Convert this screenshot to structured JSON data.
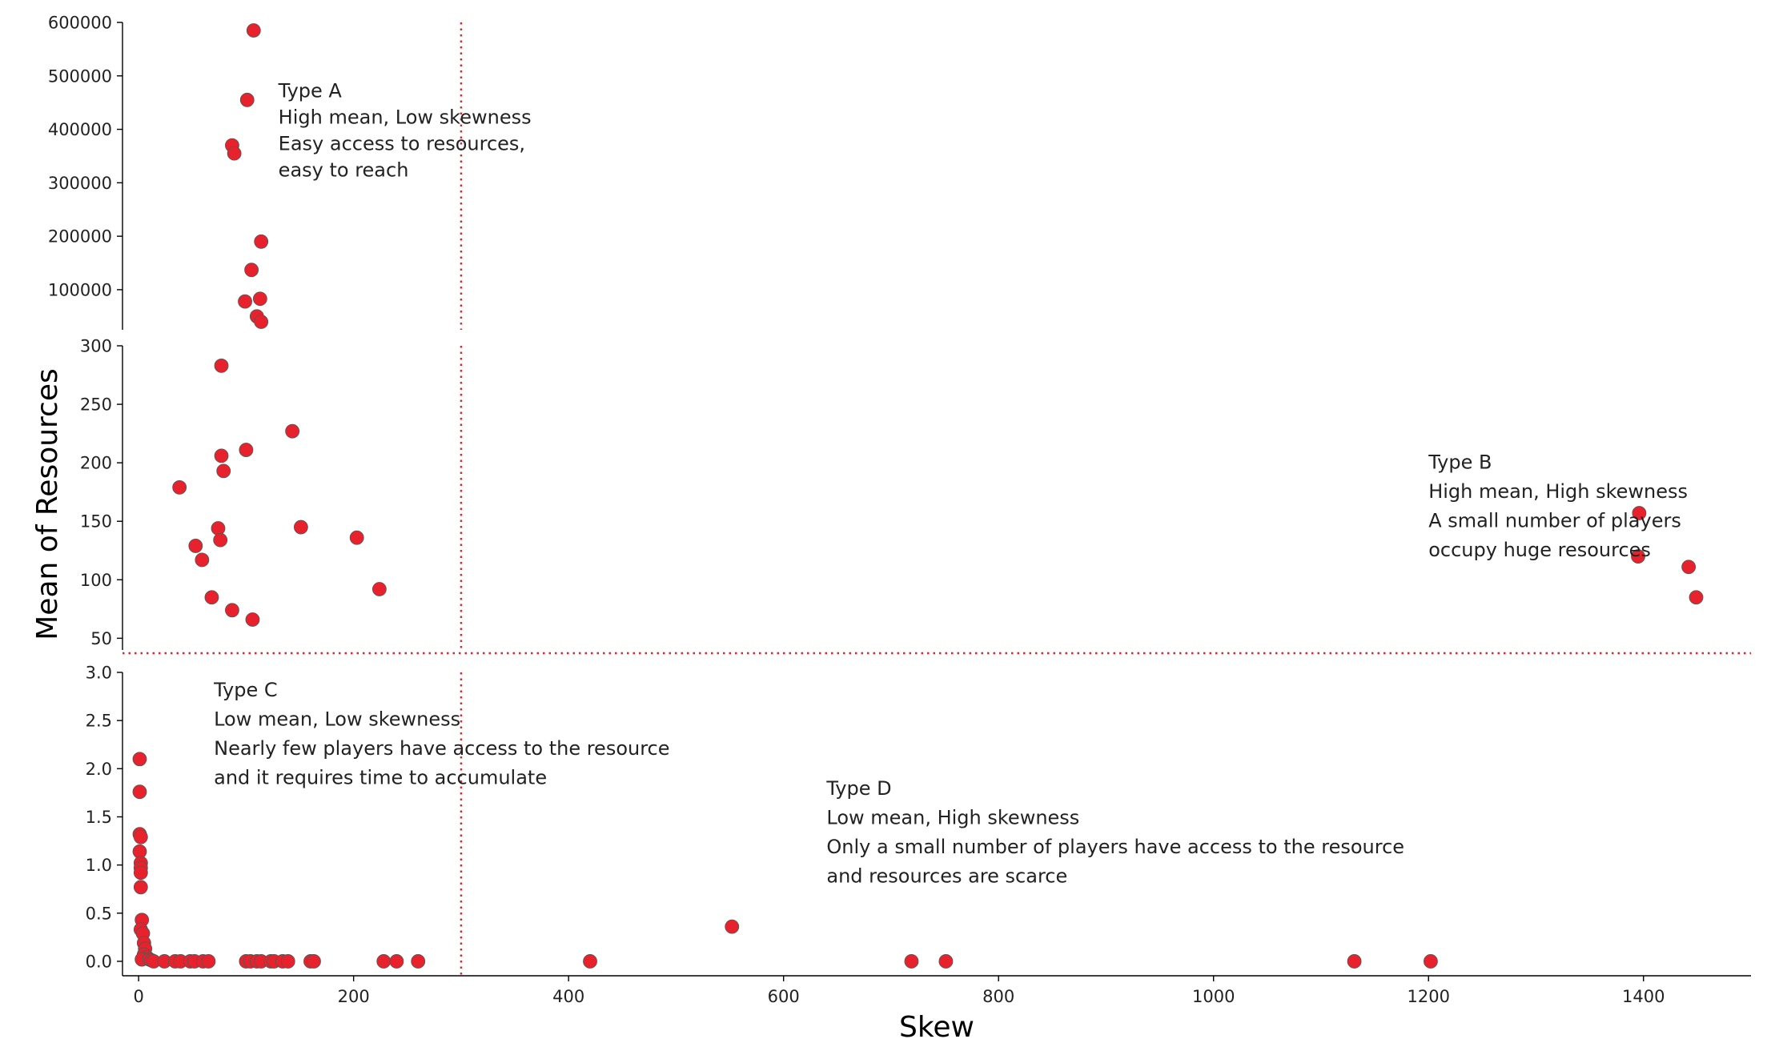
{
  "chart_data": {
    "type": "scatter",
    "xlabel": "Skew",
    "ylabel": "Mean of Resources",
    "x_ticks": [
      0,
      200,
      400,
      600,
      800,
      1000,
      1200,
      1400
    ],
    "xlim": [
      -15,
      1500
    ],
    "point_color": "#e8222c",
    "reference_lines": {
      "vertical_x": 300,
      "horizontal": "between Mean 50 and Mean 3.0 panels"
    },
    "panels": [
      {
        "name": "top",
        "ylim": [
          25000,
          600000
        ],
        "y_ticks": [
          100000,
          200000,
          300000,
          400000,
          500000,
          600000
        ],
        "points": [
          {
            "x": 107,
            "y": 585000
          },
          {
            "x": 101,
            "y": 455000
          },
          {
            "x": 87,
            "y": 370000
          },
          {
            "x": 89,
            "y": 355000
          },
          {
            "x": 114,
            "y": 190000
          },
          {
            "x": 105,
            "y": 137000
          },
          {
            "x": 99,
            "y": 78000
          },
          {
            "x": 113,
            "y": 83000
          },
          {
            "x": 110,
            "y": 50000
          },
          {
            "x": 114,
            "y": 40000
          }
        ]
      },
      {
        "name": "middle",
        "ylim": [
          40,
          300
        ],
        "y_ticks": [
          50,
          100,
          150,
          200,
          250,
          300
        ],
        "points": [
          {
            "x": 77,
            "y": 283
          },
          {
            "x": 143,
            "y": 227
          },
          {
            "x": 100,
            "y": 211
          },
          {
            "x": 77,
            "y": 206
          },
          {
            "x": 79,
            "y": 193
          },
          {
            "x": 38,
            "y": 179
          },
          {
            "x": 151,
            "y": 145
          },
          {
            "x": 74,
            "y": 144
          },
          {
            "x": 76,
            "y": 134
          },
          {
            "x": 203,
            "y": 136
          },
          {
            "x": 53,
            "y": 129
          },
          {
            "x": 59,
            "y": 117
          },
          {
            "x": 224,
            "y": 92
          },
          {
            "x": 68,
            "y": 85
          },
          {
            "x": 87,
            "y": 74
          },
          {
            "x": 106,
            "y": 66
          },
          {
            "x": 1396,
            "y": 157
          },
          {
            "x": 1395,
            "y": 120
          },
          {
            "x": 1442,
            "y": 111
          },
          {
            "x": 1449,
            "y": 85
          }
        ]
      },
      {
        "name": "bottom",
        "ylim": [
          -0.15,
          3.0
        ],
        "y_ticks": [
          0.0,
          0.5,
          1.0,
          1.5,
          2.0,
          2.5,
          3.0
        ],
        "y_tick_labels": [
          "0.0",
          "0.5",
          "1.0",
          "1.5",
          "2.0",
          "2.5",
          "3.0"
        ],
        "points": [
          {
            "x": 1,
            "y": 2.1
          },
          {
            "x": 1,
            "y": 1.76
          },
          {
            "x": 1,
            "y": 1.32
          },
          {
            "x": 2,
            "y": 1.29
          },
          {
            "x": 1,
            "y": 1.14
          },
          {
            "x": 2,
            "y": 1.02
          },
          {
            "x": 2,
            "y": 0.97
          },
          {
            "x": 2,
            "y": 0.92
          },
          {
            "x": 2,
            "y": 0.77
          },
          {
            "x": 3,
            "y": 0.43
          },
          {
            "x": 2,
            "y": 0.33
          },
          {
            "x": 4,
            "y": 0.29
          },
          {
            "x": 5,
            "y": 0.19
          },
          {
            "x": 6,
            "y": 0.13
          },
          {
            "x": 5,
            "y": 0.07
          },
          {
            "x": 8,
            "y": 0.04
          },
          {
            "x": 3,
            "y": 0.02
          },
          {
            "x": 10,
            "y": 0.02
          },
          {
            "x": 12,
            "y": 0.01
          },
          {
            "x": 14,
            "y": 0.0
          },
          {
            "x": 24,
            "y": 0.0
          },
          {
            "x": 34,
            "y": 0.0
          },
          {
            "x": 39,
            "y": 0.0
          },
          {
            "x": 48,
            "y": 0.0
          },
          {
            "x": 52,
            "y": 0.0
          },
          {
            "x": 60,
            "y": 0.0
          },
          {
            "x": 65,
            "y": 0.0
          },
          {
            "x": 100,
            "y": 0.0
          },
          {
            "x": 104,
            "y": 0.0
          },
          {
            "x": 110,
            "y": 0.0
          },
          {
            "x": 114,
            "y": 0.0
          },
          {
            "x": 123,
            "y": 0.0
          },
          {
            "x": 126,
            "y": 0.0
          },
          {
            "x": 134,
            "y": 0.0
          },
          {
            "x": 139,
            "y": 0.0
          },
          {
            "x": 160,
            "y": 0.0
          },
          {
            "x": 163,
            "y": 0.0
          },
          {
            "x": 228,
            "y": 0.0
          },
          {
            "x": 240,
            "y": 0.0
          },
          {
            "x": 260,
            "y": 0.0
          },
          {
            "x": 420,
            "y": 0.0
          },
          {
            "x": 552,
            "y": 0.36
          },
          {
            "x": 719,
            "y": 0.0
          },
          {
            "x": 751,
            "y": 0.0
          },
          {
            "x": 1131,
            "y": 0.0
          },
          {
            "x": 1202,
            "y": 0.0
          }
        ]
      }
    ],
    "annotations": [
      {
        "panel": "top",
        "x": 130,
        "y": 460000,
        "lines": [
          "Type A",
          "High mean, Low skewness",
          "Easy access to resources,",
          "easy to reach"
        ]
      },
      {
        "panel": "middle",
        "x": 1200,
        "y": 195,
        "lines": [
          "Type B",
          "High mean, High skewness",
          "A small number of players",
          "occupy huge resources"
        ]
      },
      {
        "panel": "bottom",
        "x": 70,
        "y": 2.75,
        "lines": [
          "Type C",
          "Low mean, Low skewness",
          "Nearly few players have access to the resource",
          "and it requires time to accumulate"
        ]
      },
      {
        "panel": "bottom",
        "x": 640,
        "y": 1.73,
        "lines": [
          "Type D",
          "Low mean, High skewness",
          "Only a small number of players have access to the resource",
          "and resources are scarce"
        ]
      }
    ]
  }
}
